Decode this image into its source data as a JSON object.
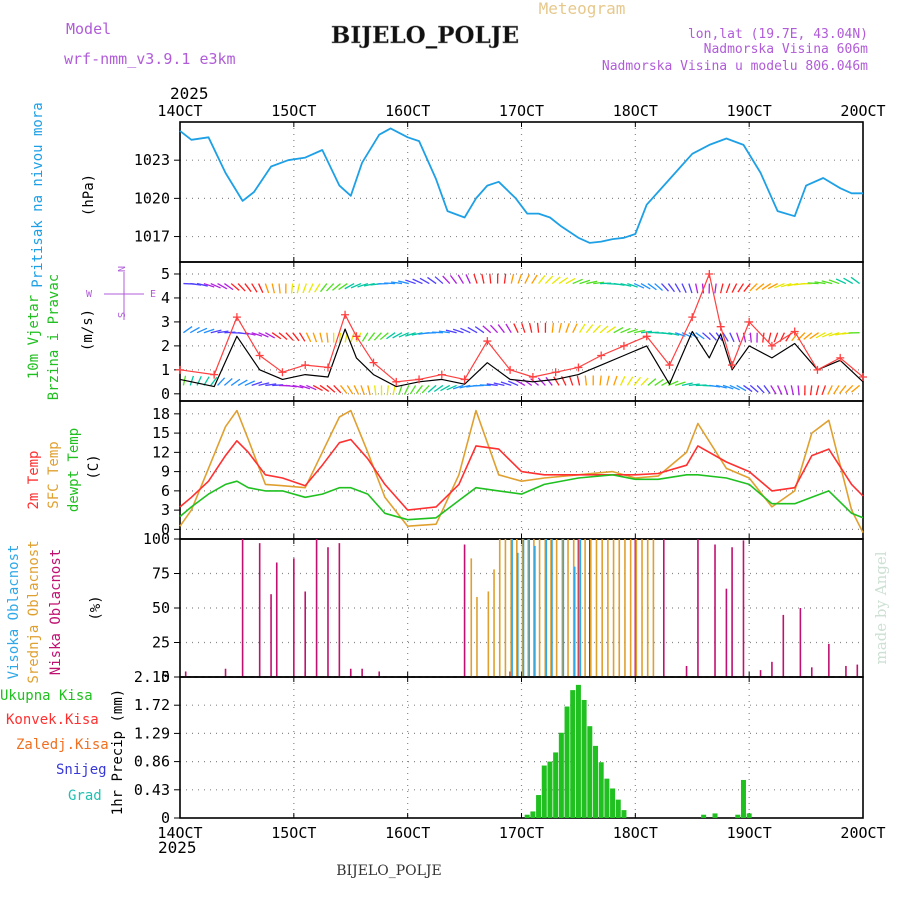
{
  "header": {
    "model_label": "Model",
    "model_name": "wrf-nmm_v3.9.1 e3km",
    "title": "Meteogram",
    "station": "BIJELO_POLJE",
    "lonlat": "lon,lat (19.7E, 43.04N)",
    "altitude": "Nadmorska Visina 606m",
    "model_altitude": "Nadmorska Visina u modelu 806.046m",
    "year_top": "2025",
    "year_bottom": "2025",
    "footer_station": "BIJELO_POLJE",
    "credit": "made by Angel"
  },
  "colors": {
    "model": "#b05cd8",
    "title": "#e6c88c",
    "pressure": "#1ea0e6",
    "wind_speed": "#000000",
    "gust": "#ff4040",
    "temp2m": "#ff3030",
    "sfc_temp": "#e0a030",
    "dewpoint": "#20c020",
    "high_cloud": "#30a8e8",
    "mid_cloud": "#e0a030",
    "low_cloud": "#c01070",
    "precip_total": "#20c020"
  },
  "chart_data": [
    {
      "type": "line",
      "panel": "pressure",
      "ylabel": [
        "Pritisak na nivou mora",
        "(hPa)"
      ],
      "ylim": [
        1015,
        1026
      ],
      "yticks": [
        1017,
        1020,
        1023
      ],
      "x_days": [
        14,
        15,
        16,
        17,
        18,
        19,
        20
      ],
      "x_tick_labels": [
        "14OCT",
        "15OCT",
        "16OCT",
        "17OCT",
        "18OCT",
        "19OCT",
        "20OCT"
      ],
      "series": [
        {
          "name": "MSLP",
          "x": [
            14.0,
            14.1,
            14.25,
            14.4,
            14.55,
            14.65,
            14.8,
            14.95,
            15.1,
            15.25,
            15.4,
            15.5,
            15.6,
            15.75,
            15.85,
            16.0,
            16.1,
            16.25,
            16.35,
            16.5,
            16.6,
            16.7,
            16.8,
            16.95,
            17.05,
            17.15,
            17.25,
            17.35,
            17.5,
            17.6,
            17.7,
            17.8,
            17.9,
            18.0,
            18.1,
            18.25,
            18.4,
            18.5,
            18.65,
            18.8,
            18.95,
            19.1,
            19.25,
            19.4,
            19.5,
            19.65,
            19.8,
            19.9,
            20.0
          ],
          "values": [
            1025.3,
            1024.6,
            1024.8,
            1022.0,
            1019.8,
            1020.5,
            1022.5,
            1023.0,
            1023.2,
            1023.8,
            1021.0,
            1020.2,
            1022.8,
            1025.0,
            1025.5,
            1024.8,
            1024.5,
            1021.5,
            1019.0,
            1018.5,
            1020.0,
            1021.0,
            1021.3,
            1020.0,
            1018.8,
            1018.8,
            1018.5,
            1017.8,
            1016.9,
            1016.5,
            1016.6,
            1016.8,
            1016.9,
            1017.2,
            1019.5,
            1021.0,
            1022.5,
            1023.5,
            1024.2,
            1024.7,
            1024.2,
            1022.0,
            1019.0,
            1018.6,
            1021.0,
            1021.6,
            1020.8,
            1020.4,
            1020.4
          ]
        }
      ]
    },
    {
      "type": "line",
      "panel": "wind",
      "ylabel": [
        "10m Vjetar",
        "Brzina i Pravac",
        "(m/s)"
      ],
      "direction_legend": [
        "N",
        "E",
        "W",
        "S"
      ],
      "ylim": [
        -0.3,
        5.5
      ],
      "yticks": [
        0,
        1,
        2,
        3,
        4,
        5
      ],
      "series": [
        {
          "name": "wind speed",
          "x": [
            14.0,
            14.3,
            14.5,
            14.7,
            14.9,
            15.1,
            15.3,
            15.45,
            15.55,
            15.7,
            15.9,
            16.1,
            16.3,
            16.5,
            16.7,
            16.9,
            17.1,
            17.3,
            17.5,
            17.7,
            17.9,
            18.1,
            18.3,
            18.5,
            18.65,
            18.75,
            18.85,
            19.0,
            19.2,
            19.4,
            19.6,
            19.8,
            20.0
          ],
          "values": [
            0.6,
            0.3,
            2.4,
            1.0,
            0.6,
            0.8,
            0.7,
            2.7,
            1.5,
            0.8,
            0.3,
            0.5,
            0.6,
            0.4,
            1.3,
            0.6,
            0.5,
            0.6,
            0.8,
            1.2,
            1.6,
            2.0,
            0.4,
            2.6,
            1.5,
            2.5,
            1.0,
            2.0,
            1.5,
            2.1,
            1.0,
            1.4,
            0.5
          ]
        },
        {
          "name": "gust",
          "x": [
            14.0,
            14.3,
            14.5,
            14.7,
            14.9,
            15.1,
            15.3,
            15.45,
            15.55,
            15.7,
            15.9,
            16.1,
            16.3,
            16.5,
            16.7,
            16.9,
            17.1,
            17.3,
            17.5,
            17.7,
            17.9,
            18.1,
            18.3,
            18.5,
            18.65,
            18.75,
            18.85,
            19.0,
            19.2,
            19.4,
            19.6,
            19.8,
            20.0
          ],
          "values": [
            1.0,
            0.8,
            3.2,
            1.6,
            0.9,
            1.2,
            1.1,
            3.3,
            2.4,
            1.3,
            0.5,
            0.6,
            0.8,
            0.6,
            2.2,
            1.0,
            0.7,
            0.9,
            1.1,
            1.6,
            2.0,
            2.4,
            1.2,
            3.2,
            5.0,
            2.8,
            1.2,
            3.0,
            2.0,
            2.6,
            1.0,
            1.5,
            0.7
          ]
        }
      ]
    },
    {
      "type": "line",
      "panel": "temperature",
      "ylabel": [
        "2m Temp",
        "SFC Temp",
        "dewpt Temp",
        "(C)"
      ],
      "ylim": [
        -1.5,
        20
      ],
      "yticks": [
        0,
        3,
        6,
        9,
        12,
        15,
        18
      ],
      "series": [
        {
          "name": "2m Temp",
          "x": [
            14.0,
            14.1,
            14.25,
            14.4,
            14.5,
            14.6,
            14.75,
            14.9,
            15.1,
            15.25,
            15.4,
            15.5,
            15.65,
            15.8,
            16.0,
            16.25,
            16.45,
            16.6,
            16.8,
            17.0,
            17.2,
            17.5,
            17.8,
            18.0,
            18.2,
            18.45,
            18.55,
            18.8,
            19.0,
            19.2,
            19.4,
            19.55,
            19.7,
            19.9,
            20.0
          ],
          "values": [
            3.5,
            5.0,
            7.5,
            11.5,
            13.8,
            12.0,
            8.5,
            8.0,
            6.8,
            10.0,
            13.5,
            14.0,
            11.0,
            7.0,
            3.0,
            3.5,
            7.0,
            13.0,
            12.5,
            9.0,
            8.5,
            8.5,
            8.5,
            8.5,
            8.7,
            10.0,
            13.0,
            10.5,
            9.0,
            6.0,
            6.5,
            11.5,
            12.5,
            7.0,
            5.2
          ]
        },
        {
          "name": "SFC Temp",
          "x": [
            14.0,
            14.1,
            14.25,
            14.4,
            14.5,
            14.6,
            14.75,
            14.9,
            15.1,
            15.25,
            15.4,
            15.5,
            15.65,
            15.8,
            16.0,
            16.25,
            16.45,
            16.6,
            16.8,
            17.0,
            17.2,
            17.5,
            17.8,
            18.0,
            18.2,
            18.45,
            18.55,
            18.8,
            19.0,
            19.2,
            19.4,
            19.55,
            19.7,
            19.9,
            20.0
          ],
          "values": [
            0.5,
            3.0,
            9.5,
            16.0,
            18.5,
            14.0,
            7.0,
            6.8,
            6.5,
            12.0,
            17.5,
            18.5,
            12.0,
            5.0,
            0.5,
            0.8,
            8.5,
            18.5,
            8.5,
            7.5,
            8.0,
            8.5,
            9.0,
            8.0,
            8.3,
            12.0,
            16.5,
            9.5,
            8.0,
            3.5,
            6.0,
            15.0,
            17.0,
            3.0,
            -0.5
          ]
        },
        {
          "name": "dewpt Temp",
          "x": [
            14.0,
            14.1,
            14.25,
            14.4,
            14.5,
            14.6,
            14.75,
            14.9,
            15.1,
            15.25,
            15.4,
            15.5,
            15.65,
            15.8,
            16.0,
            16.25,
            16.45,
            16.6,
            16.8,
            17.0,
            17.2,
            17.5,
            17.8,
            18.0,
            18.2,
            18.45,
            18.55,
            18.8,
            19.0,
            19.2,
            19.4,
            19.55,
            19.7,
            19.9,
            20.0
          ],
          "values": [
            2.0,
            3.5,
            5.5,
            7.0,
            7.5,
            6.5,
            6.0,
            6.0,
            5.0,
            5.5,
            6.5,
            6.5,
            5.5,
            2.5,
            1.5,
            1.8,
            4.5,
            6.5,
            6.0,
            5.5,
            7.0,
            8.0,
            8.5,
            7.8,
            7.8,
            8.5,
            8.5,
            8.0,
            7.0,
            4.0,
            4.0,
            5.0,
            6.0,
            2.5,
            1.8
          ]
        }
      ]
    },
    {
      "type": "bar",
      "panel": "clouds",
      "ylabel": [
        "Visoka Oblacnost",
        "Srednja Oblacnost",
        "Niska Oblacnost",
        "(%)"
      ],
      "ylim": [
        0,
        100
      ],
      "yticks": [
        0,
        25,
        50,
        75,
        100
      ],
      "series": [
        {
          "name": "Niska Oblacnost",
          "x": [
            14.05,
            14.4,
            14.55,
            14.7,
            14.8,
            14.85,
            15.0,
            15.1,
            15.1,
            15.2,
            15.3,
            15.4,
            15.5,
            15.5,
            15.6,
            15.75,
            16.5,
            16.9,
            17.5,
            17.6,
            18.0,
            18.25,
            18.45,
            18.55,
            18.7,
            18.8,
            18.85,
            18.95,
            19.1,
            19.2,
            19.3,
            19.45,
            19.55,
            19.7,
            19.85,
            19.95
          ],
          "values": [
            4,
            6,
            100,
            97,
            60,
            83,
            86,
            4,
            62,
            100,
            94,
            97,
            4,
            6,
            6,
            4,
            96,
            4,
            100,
            100,
            100,
            100,
            8,
            100,
            96,
            64,
            94,
            99,
            5,
            11,
            45,
            50,
            7,
            24,
            8,
            9
          ]
        },
        {
          "name": "Srednja Oblacnost",
          "x": [
            16.55,
            16.6,
            16.7,
            16.75,
            16.8,
            16.85,
            16.9,
            16.95,
            17.0,
            17.05,
            17.1,
            17.15,
            17.2,
            17.25,
            17.3,
            17.35,
            17.4,
            17.45,
            17.5,
            17.55,
            17.6,
            17.65,
            17.7,
            17.75,
            17.8,
            17.85,
            17.9,
            17.95,
            18.0,
            18.05,
            18.1,
            18.15
          ],
          "values": [
            86,
            58,
            62,
            78,
            100,
            100,
            100,
            100,
            100,
            100,
            100,
            100,
            100,
            100,
            100,
            100,
            100,
            100,
            100,
            100,
            100,
            100,
            100,
            100,
            100,
            100,
            100,
            100,
            100,
            100,
            100,
            100
          ]
        },
        {
          "name": "Visoka Oblacnost",
          "x": [
            16.9,
            16.95,
            17.0,
            17.05,
            17.1,
            17.2,
            17.25,
            17.35,
            17.45,
            17.5
          ],
          "values": [
            100,
            90,
            100,
            100,
            95,
            100,
            100,
            100,
            80,
            100
          ]
        }
      ]
    },
    {
      "type": "bar",
      "panel": "precipitation",
      "ylabel": [
        "1hr Precip (mm)"
      ],
      "legend": [
        "Ukupna Kisa",
        "Konvek.Kisa",
        "Zaledj.Kisa",
        "Snijeg",
        "Grad"
      ],
      "ylim": [
        0,
        2.15
      ],
      "yticks": [
        0,
        0.43,
        0.86,
        1.29,
        1.72,
        2.15
      ],
      "x": [
        17.05,
        17.1,
        17.15,
        17.2,
        17.25,
        17.3,
        17.35,
        17.4,
        17.45,
        17.5,
        17.55,
        17.6,
        17.65,
        17.7,
        17.75,
        17.8,
        17.85,
        17.9,
        18.6,
        18.7,
        18.9,
        18.95,
        19.0
      ],
      "values": [
        0.05,
        0.1,
        0.35,
        0.8,
        0.86,
        1.0,
        1.3,
        1.7,
        1.95,
        2.03,
        1.8,
        1.4,
        1.1,
        0.85,
        0.6,
        0.45,
        0.28,
        0.12,
        0.05,
        0.07,
        0.05,
        0.58,
        0.07
      ]
    }
  ]
}
